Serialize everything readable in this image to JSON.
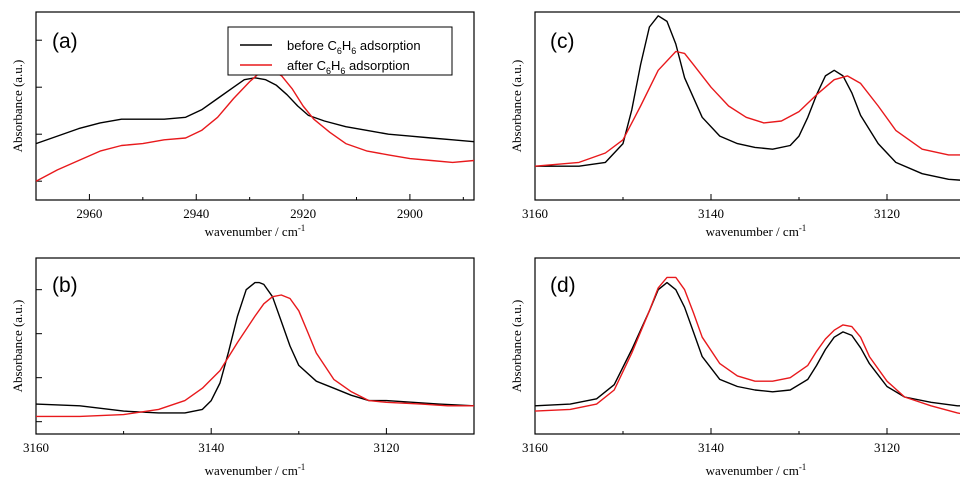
{
  "series_colors": {
    "before": "#000000",
    "after": "#e8191c"
  },
  "legend": {
    "before": {
      "prefix": "before C",
      "sub1": "6",
      "mid": "H",
      "sub2": "6",
      "suffix": " adsorption"
    },
    "after": {
      "prefix": "after C",
      "sub1": "6",
      "mid": "H",
      "sub2": "6",
      "suffix": " adsorption"
    }
  },
  "chart_data": [
    {
      "panel": "(a)",
      "type": "line",
      "xlabel": "wavenumber / cm",
      "xlabel_sup": "-1",
      "ylabel": "Absorbance (a.u.)",
      "xlim": [
        2970,
        2888
      ],
      "ylim": [
        0,
        1
      ],
      "xticks": [
        2960,
        2940,
        2920,
        2900
      ],
      "yticks": [
        0.1,
        0.35,
        0.6,
        0.85
      ],
      "legend": "top-right",
      "series": [
        {
          "name": "before C6H6 adsorption",
          "color": "#000000",
          "x": [
            2970,
            2966,
            2962,
            2958,
            2954,
            2950,
            2946,
            2942,
            2939,
            2936,
            2933,
            2931,
            2929,
            2927,
            2925,
            2923,
            2921,
            2919,
            2916,
            2912,
            2908,
            2904,
            2900,
            2896,
            2892,
            2888
          ],
          "y": [
            0.3,
            0.34,
            0.38,
            0.41,
            0.43,
            0.43,
            0.43,
            0.44,
            0.48,
            0.54,
            0.6,
            0.64,
            0.65,
            0.64,
            0.61,
            0.56,
            0.5,
            0.45,
            0.42,
            0.39,
            0.37,
            0.35,
            0.34,
            0.33,
            0.32,
            0.31
          ]
        },
        {
          "name": "after C6H6 adsorption",
          "color": "#e8191c",
          "x": [
            2970,
            2966,
            2962,
            2958,
            2954,
            2950,
            2946,
            2942,
            2939,
            2936,
            2933,
            2930,
            2928,
            2926,
            2924,
            2922,
            2920,
            2918,
            2915,
            2912,
            2908,
            2904,
            2900,
            2896,
            2892,
            2888
          ],
          "y": [
            0.1,
            0.16,
            0.21,
            0.26,
            0.29,
            0.3,
            0.32,
            0.33,
            0.37,
            0.44,
            0.54,
            0.63,
            0.68,
            0.69,
            0.66,
            0.59,
            0.5,
            0.43,
            0.36,
            0.3,
            0.26,
            0.24,
            0.22,
            0.21,
            0.2,
            0.21
          ]
        }
      ]
    },
    {
      "panel": "(b)",
      "type": "line",
      "xlabel": "wavenumber / cm",
      "xlabel_sup": "-1",
      "ylabel": "Absorbance (a.u.)",
      "xlim": [
        3160,
        3110
      ],
      "ylim": [
        0,
        1
      ],
      "xticks": [
        3160,
        3140,
        3120
      ],
      "yticks": [
        0.07,
        0.32,
        0.57,
        0.82
      ],
      "series": [
        {
          "name": "before C6H6 adsorption",
          "color": "#000000",
          "x": [
            3160,
            3155,
            3150,
            3146,
            3143,
            3141,
            3140,
            3139,
            3138,
            3137,
            3136,
            3135,
            3134.5,
            3134,
            3133,
            3132,
            3131,
            3130,
            3128,
            3126,
            3124,
            3122,
            3120,
            3117,
            3114,
            3110
          ],
          "y": [
            0.17,
            0.16,
            0.13,
            0.12,
            0.12,
            0.14,
            0.19,
            0.29,
            0.47,
            0.67,
            0.82,
            0.86,
            0.86,
            0.85,
            0.78,
            0.64,
            0.5,
            0.39,
            0.3,
            0.26,
            0.22,
            0.19,
            0.19,
            0.18,
            0.17,
            0.16
          ]
        },
        {
          "name": "after C6H6 adsorption",
          "color": "#e8191c",
          "x": [
            3160,
            3155,
            3150,
            3146,
            3143,
            3141,
            3139,
            3137,
            3135,
            3134,
            3133,
            3132,
            3131,
            3130,
            3129,
            3128,
            3126,
            3124,
            3122,
            3120,
            3116,
            3113,
            3110
          ],
          "y": [
            0.1,
            0.1,
            0.11,
            0.14,
            0.19,
            0.26,
            0.36,
            0.52,
            0.67,
            0.74,
            0.78,
            0.79,
            0.77,
            0.7,
            0.58,
            0.46,
            0.31,
            0.24,
            0.19,
            0.18,
            0.17,
            0.16,
            0.16
          ]
        }
      ]
    },
    {
      "panel": "(c)",
      "type": "line",
      "xlabel": "wavenumber / cm",
      "xlabel_sup": "-1",
      "ylabel": "Absorbance (a.u.)",
      "xlim": [
        3160,
        3110
      ],
      "ylim": [
        0,
        1
      ],
      "xticks": [
        3160,
        3140,
        3120
      ],
      "yticks": [],
      "series": [
        {
          "name": "before C6H6 adsorption",
          "color": "#000000",
          "x": [
            3160,
            3155,
            3152,
            3150,
            3149,
            3148,
            3147,
            3146,
            3145,
            3144,
            3143,
            3141,
            3139,
            3137,
            3135,
            3133,
            3131,
            3130,
            3129,
            3128,
            3127,
            3126,
            3125,
            3124,
            3123,
            3121,
            3119,
            3116,
            3113,
            3110
          ],
          "y": [
            0.18,
            0.18,
            0.2,
            0.3,
            0.48,
            0.72,
            0.92,
            0.98,
            0.95,
            0.83,
            0.65,
            0.44,
            0.34,
            0.3,
            0.28,
            0.27,
            0.29,
            0.34,
            0.44,
            0.56,
            0.66,
            0.69,
            0.66,
            0.57,
            0.45,
            0.3,
            0.2,
            0.14,
            0.11,
            0.1
          ]
        },
        {
          "name": "after C6H6 adsorption",
          "color": "#e8191c",
          "x": [
            3160,
            3155,
            3152,
            3150,
            3148,
            3146,
            3144,
            3143,
            3142,
            3140,
            3138,
            3136,
            3134,
            3132,
            3130,
            3128,
            3126,
            3124.5,
            3123,
            3121,
            3119,
            3116,
            3113,
            3110
          ],
          "y": [
            0.18,
            0.2,
            0.25,
            0.32,
            0.5,
            0.69,
            0.79,
            0.78,
            0.72,
            0.6,
            0.5,
            0.44,
            0.41,
            0.42,
            0.47,
            0.56,
            0.64,
            0.66,
            0.62,
            0.5,
            0.37,
            0.27,
            0.24,
            0.24
          ]
        }
      ]
    },
    {
      "panel": "(d)",
      "type": "line",
      "xlabel": "wavenumber / cm",
      "xlabel_sup": "-1",
      "ylabel": "Absorbance (a.u.)",
      "xlim": [
        3160,
        3110
      ],
      "ylim": [
        0,
        1
      ],
      "xticks": [
        3160,
        3140,
        3120
      ],
      "yticks": [],
      "series": [
        {
          "name": "before C6H6 adsorption",
          "color": "#000000",
          "x": [
            3160,
            3156,
            3153,
            3151,
            3149,
            3147,
            3146,
            3145,
            3144,
            3143,
            3142,
            3141,
            3139,
            3137,
            3135,
            3133,
            3131,
            3129,
            3128,
            3127,
            3126,
            3125,
            3124,
            3123,
            3122,
            3120,
            3118,
            3115,
            3112,
            3110
          ],
          "y": [
            0.16,
            0.17,
            0.2,
            0.28,
            0.48,
            0.7,
            0.82,
            0.86,
            0.82,
            0.72,
            0.58,
            0.44,
            0.31,
            0.27,
            0.25,
            0.24,
            0.25,
            0.31,
            0.39,
            0.48,
            0.55,
            0.58,
            0.56,
            0.49,
            0.4,
            0.27,
            0.21,
            0.18,
            0.16,
            0.16
          ]
        },
        {
          "name": "after C6H6 adsorption",
          "color": "#e8191c",
          "x": [
            3160,
            3156,
            3153,
            3151,
            3149,
            3147,
            3146,
            3145,
            3144,
            3143,
            3142,
            3141,
            3139,
            3137,
            3135,
            3133,
            3131,
            3129,
            3128,
            3127,
            3126,
            3125,
            3124,
            3123,
            3122,
            3120,
            3118,
            3115,
            3112,
            3110
          ],
          "y": [
            0.13,
            0.14,
            0.17,
            0.25,
            0.46,
            0.7,
            0.83,
            0.89,
            0.89,
            0.82,
            0.69,
            0.55,
            0.4,
            0.33,
            0.3,
            0.3,
            0.32,
            0.39,
            0.47,
            0.54,
            0.59,
            0.62,
            0.61,
            0.55,
            0.44,
            0.3,
            0.21,
            0.16,
            0.12,
            0.1
          ]
        }
      ]
    }
  ]
}
